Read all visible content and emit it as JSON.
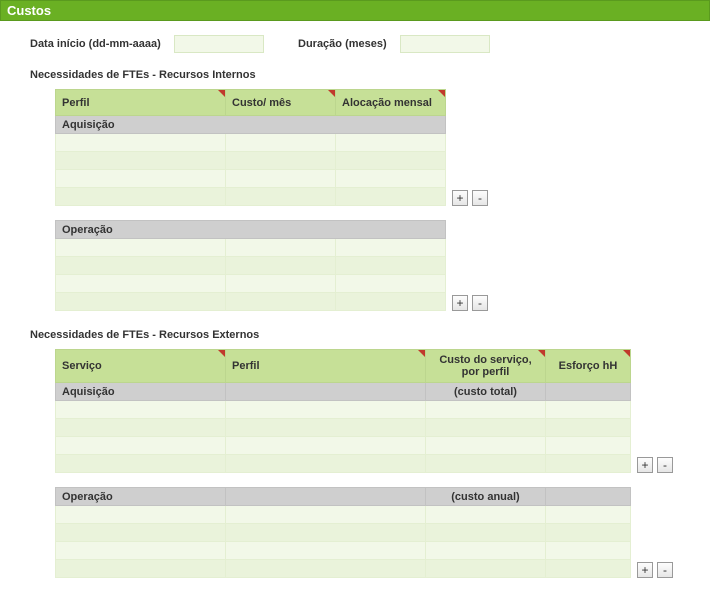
{
  "header": {
    "title": "Custos"
  },
  "form": {
    "start_date_label": "Data início (dd-mm-aaaa)",
    "start_date_value": "",
    "duration_label": "Duração (meses)",
    "duration_value": ""
  },
  "internal": {
    "heading": "Necessidades de FTEs - Recursos Internos",
    "columns": {
      "c0": "Perfil",
      "c1": "Custo/ mês",
      "c2": "Alocação mensal"
    },
    "col_widths": {
      "c0": 170,
      "c1": 110,
      "c2": 110
    },
    "group1_label": "Aquisição",
    "group2_label": "Operação",
    "add_label": "+",
    "remove_label": "-"
  },
  "external": {
    "heading": "Necessidades de FTEs - Recursos Externos",
    "columns": {
      "c0": "Serviço",
      "c1": "Perfil",
      "c2": "Custo do serviço, por perfil",
      "c3": "Esforço hH"
    },
    "col_widths": {
      "c0": 170,
      "c1": 200,
      "c2": 120,
      "c3": 85
    },
    "group1_label": "Aquisição",
    "group1_note": "(custo total)",
    "group2_label": "Operação",
    "group2_note": "(custo anual)",
    "add_label": "+",
    "remove_label": "-"
  },
  "colors": {
    "header_bg": "#6ab023",
    "th_bg": "#c6e097",
    "row_bg": "#f2f8e8",
    "row_alt_bg": "#eaf3db",
    "group_bg": "#cfcfcf",
    "corner": "#c0392b"
  }
}
